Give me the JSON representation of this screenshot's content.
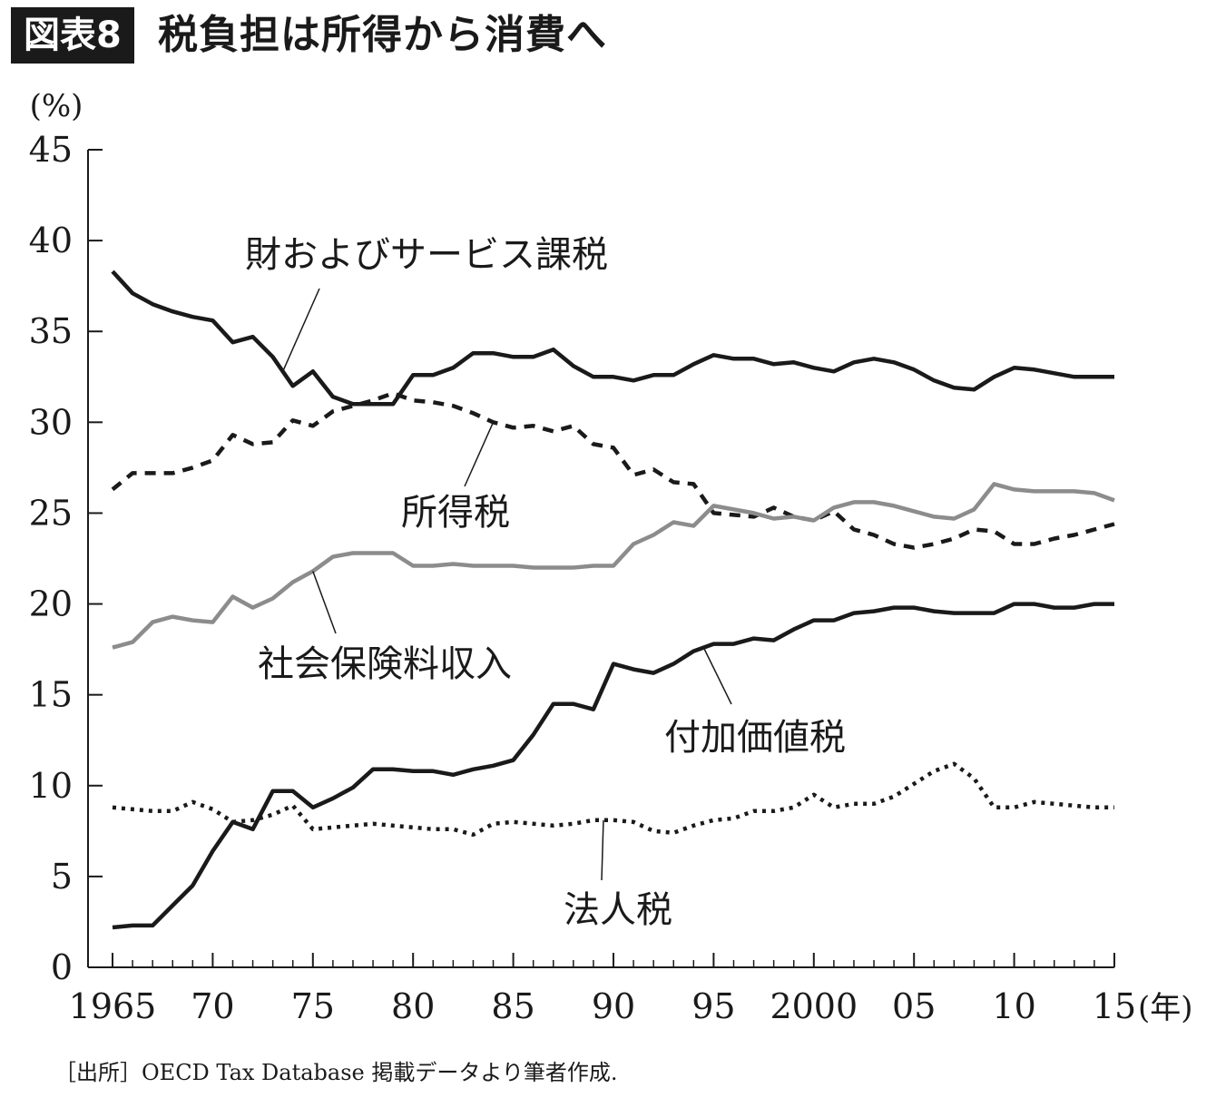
{
  "header": {
    "badge": "図表8",
    "title": "税負担は所得から消費へ"
  },
  "source": "［出所］OECD Tax Database 掲載データより筆者作成.",
  "chart_data": {
    "type": "line",
    "title": "税負担は所得から消費へ",
    "ylabel": "(%)",
    "xlabel_suffix": "(年)",
    "xlim": [
      1965,
      2015
    ],
    "ylim": [
      0,
      45
    ],
    "grid": false,
    "yticks": [
      0,
      5,
      10,
      15,
      20,
      25,
      30,
      35,
      40,
      45
    ],
    "xticks": [
      {
        "value": 1965,
        "label": "1965"
      },
      {
        "value": 1970,
        "label": "70"
      },
      {
        "value": 1975,
        "label": "75"
      },
      {
        "value": 1980,
        "label": "80"
      },
      {
        "value": 1985,
        "label": "85"
      },
      {
        "value": 1990,
        "label": "90"
      },
      {
        "value": 1995,
        "label": "95"
      },
      {
        "value": 2000,
        "label": "2000"
      },
      {
        "value": 2005,
        "label": "05"
      },
      {
        "value": 2010,
        "label": "10"
      },
      {
        "value": 2015,
        "label": "15"
      }
    ],
    "x": [
      1965,
      1966,
      1967,
      1968,
      1969,
      1970,
      1971,
      1972,
      1973,
      1974,
      1975,
      1976,
      1977,
      1978,
      1979,
      1980,
      1981,
      1982,
      1983,
      1984,
      1985,
      1986,
      1987,
      1988,
      1989,
      1990,
      1991,
      1992,
      1993,
      1994,
      1995,
      1996,
      1997,
      1998,
      1999,
      2000,
      2001,
      2002,
      2003,
      2004,
      2005,
      2006,
      2007,
      2008,
      2009,
      2010,
      2011,
      2012,
      2013,
      2014,
      2015
    ],
    "series": [
      {
        "name": "財およびサービス課税",
        "color": "#1a1a1a",
        "style": "solid",
        "values": [
          38.3,
          37.1,
          36.5,
          36.1,
          35.8,
          35.6,
          34.4,
          34.7,
          33.6,
          32.0,
          32.8,
          31.4,
          31.0,
          31.0,
          31.0,
          32.6,
          32.6,
          33.0,
          33.8,
          33.8,
          33.6,
          33.6,
          34.0,
          33.1,
          32.5,
          32.5,
          32.3,
          32.6,
          32.6,
          33.2,
          33.7,
          33.5,
          33.5,
          33.2,
          33.3,
          33.0,
          32.8,
          33.3,
          33.5,
          33.3,
          32.9,
          32.3,
          31.9,
          31.8,
          32.5,
          33.0,
          32.9,
          32.7,
          32.5,
          32.5,
          32.5
        ]
      },
      {
        "name": "所得税",
        "color": "#1a1a1a",
        "style": "dashed",
        "values": [
          26.3,
          27.2,
          27.2,
          27.2,
          27.5,
          27.9,
          29.3,
          28.8,
          28.9,
          30.1,
          29.8,
          30.6,
          30.9,
          31.2,
          31.6,
          31.2,
          31.1,
          30.9,
          30.5,
          30.0,
          29.7,
          29.8,
          29.5,
          29.8,
          28.8,
          28.6,
          27.1,
          27.4,
          26.7,
          26.6,
          25.0,
          24.9,
          24.8,
          25.3,
          24.8,
          24.6,
          25.1,
          24.1,
          23.8,
          23.3,
          23.1,
          23.3,
          23.6,
          24.1,
          24.0,
          23.3,
          23.3,
          23.6,
          23.8,
          24.1,
          24.4
        ]
      },
      {
        "name": "社会保険料収入",
        "color": "#8c8c8c",
        "style": "solid",
        "values": [
          17.6,
          17.9,
          19.0,
          19.3,
          19.1,
          19.0,
          20.4,
          19.8,
          20.3,
          21.2,
          21.8,
          22.6,
          22.8,
          22.8,
          22.8,
          22.1,
          22.1,
          22.2,
          22.1,
          22.1,
          22.1,
          22.0,
          22.0,
          22.0,
          22.1,
          22.1,
          23.3,
          23.8,
          24.5,
          24.3,
          25.4,
          25.2,
          25.0,
          24.7,
          24.8,
          24.6,
          25.3,
          25.6,
          25.6,
          25.4,
          25.1,
          24.8,
          24.7,
          25.2,
          26.6,
          26.3,
          26.2,
          26.2,
          26.2,
          26.1,
          25.7
        ]
      },
      {
        "name": "付加価値税",
        "color": "#1a1a1a",
        "style": "solid",
        "values": [
          2.2,
          2.3,
          2.3,
          3.4,
          4.5,
          6.4,
          8.0,
          7.6,
          9.7,
          9.7,
          8.8,
          9.3,
          9.9,
          10.9,
          10.9,
          10.8,
          10.8,
          10.6,
          10.9,
          11.1,
          11.4,
          12.8,
          14.5,
          14.5,
          14.2,
          16.7,
          16.4,
          16.2,
          16.7,
          17.4,
          17.8,
          17.8,
          18.1,
          18.0,
          18.6,
          19.1,
          19.1,
          19.5,
          19.6,
          19.8,
          19.8,
          19.6,
          19.5,
          19.5,
          19.5,
          20.0,
          20.0,
          19.8,
          19.8,
          20.0,
          20.0
        ]
      },
      {
        "name": "法人税",
        "color": "#1a1a1a",
        "style": "dotted",
        "values": [
          8.8,
          8.7,
          8.6,
          8.6,
          9.1,
          8.7,
          8.0,
          8.1,
          8.4,
          8.9,
          7.6,
          7.7,
          7.8,
          7.9,
          7.8,
          7.7,
          7.6,
          7.6,
          7.3,
          7.9,
          8.0,
          7.9,
          7.8,
          7.9,
          8.1,
          8.1,
          8.0,
          7.5,
          7.4,
          7.8,
          8.1,
          8.2,
          8.6,
          8.6,
          8.8,
          9.5,
          8.8,
          9.0,
          9.0,
          9.4,
          10.1,
          10.8,
          11.2,
          10.4,
          8.8,
          8.8,
          9.1,
          9.0,
          8.9,
          8.8,
          8.8
        ]
      }
    ],
    "annotations": [
      {
        "text": "財およびサービス課税",
        "pointer_series": 0,
        "pointer_x": 1973.5
      },
      {
        "text": "所得税",
        "pointer_series": 1,
        "pointer_x": 1984
      },
      {
        "text": "社会保険料収入",
        "pointer_series": 2,
        "pointer_x": 1975
      },
      {
        "text": "付加価値税",
        "pointer_series": 3,
        "pointer_x": 1994.5
      },
      {
        "text": "法人税",
        "pointer_series": 4,
        "pointer_x": 1989.5
      }
    ]
  }
}
